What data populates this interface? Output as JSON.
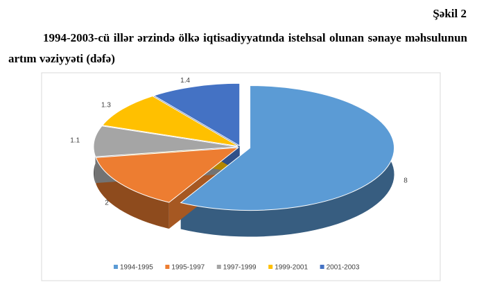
{
  "figure_label": "Şəkil 2",
  "caption": "1994-2003-cü illər ərzində ölkə iqtisadiyyatında istehsal olunan sənaye məhsulunun artım vəziyyəti (dəfə)",
  "chart_data": {
    "type": "pie",
    "categories": [
      "1994-1995",
      "1995-1997",
      "1997-1999",
      "1999-2001",
      "2001-2003"
    ],
    "values": [
      8,
      2,
      1.1,
      1.3,
      1.4
    ],
    "colors": [
      "#5b9bd5",
      "#ed7d31",
      "#a5a5a5",
      "#ffc000",
      "#4472c4"
    ],
    "legend": "bottom"
  }
}
